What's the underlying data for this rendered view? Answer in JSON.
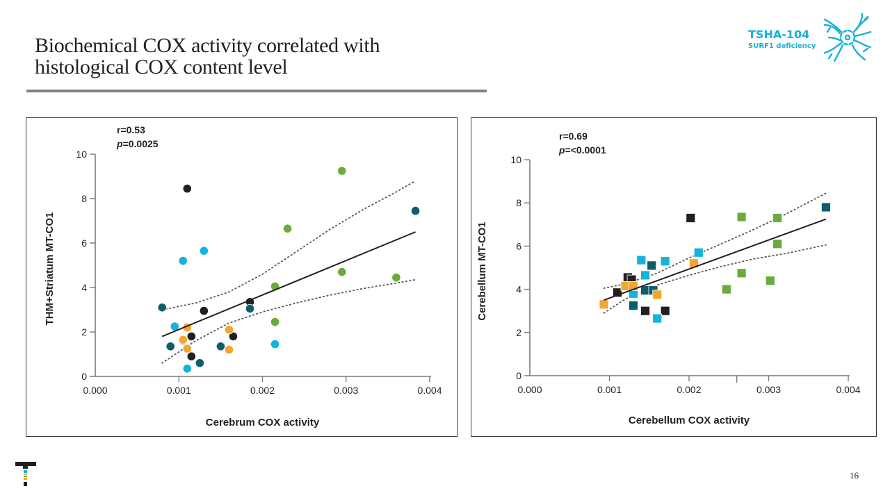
{
  "slide": {
    "title_line1": "Biochemical COX activity correlated with",
    "title_line2": "histological COX content level",
    "brand_name": "TSHA-104",
    "brand_subtitle": "SURF1 deficiency",
    "brand_icon": "neuron-icon",
    "logo_icon": "company-t-logo",
    "page_number": "16",
    "colors": {
      "brand": "#1ab0d8",
      "black": "#231f20",
      "teal": "#0b5f6b",
      "cyan": "#14b3da",
      "orange": "#f5a532",
      "green": "#6aac3c"
    }
  },
  "chart_data": [
    {
      "type": "scatter",
      "marker": "circle",
      "title": "",
      "annotation_r": "r=0.53",
      "annotation_p_label": "p",
      "annotation_p_value": "=0.0025",
      "xlabel": "Cerebrum COX activity",
      "ylabel": "THM+Striatum MT-CO1",
      "xlim": [
        0,
        0.004
      ],
      "ylim": [
        0,
        10
      ],
      "xticks": [
        "0.000",
        "0.001",
        "0.002",
        "0.003",
        "0.004"
      ],
      "xtick_values": [
        0,
        0.001,
        0.002,
        0.003,
        0.004
      ],
      "yticks": [
        "0",
        "2",
        "4",
        "6",
        "8",
        "10"
      ],
      "ytick_values": [
        0,
        2,
        4,
        6,
        8,
        10
      ],
      "grid": false,
      "regression": {
        "x": [
          0.0008,
          0.00383
        ],
        "y": [
          1.8,
          6.5
        ]
      },
      "ci_upper": {
        "x": [
          0.0008,
          0.0012,
          0.0016,
          0.002,
          0.0024,
          0.0028,
          0.0032,
          0.0036,
          0.00383
        ],
        "y": [
          3.0,
          3.3,
          3.8,
          4.6,
          5.6,
          6.6,
          7.5,
          8.3,
          8.8
        ]
      },
      "ci_lower": {
        "x": [
          0.0008,
          0.0012,
          0.0016,
          0.002,
          0.0024,
          0.0028,
          0.0032,
          0.0036,
          0.00383
        ],
        "y": [
          0.6,
          1.6,
          2.4,
          2.9,
          3.3,
          3.65,
          3.95,
          4.2,
          4.35
        ]
      },
      "series": [
        {
          "name": "black",
          "color": "#231f20",
          "points": [
            [
              0.0011,
              8.45
            ],
            [
              0.0013,
              2.95
            ],
            [
              0.00115,
              1.8
            ],
            [
              0.00115,
              0.9
            ],
            [
              0.00185,
              3.35
            ],
            [
              0.00165,
              1.8
            ]
          ]
        },
        {
          "name": "teal",
          "color": "#0b5f6b",
          "points": [
            [
              0.0008,
              3.1
            ],
            [
              0.0009,
              1.35
            ],
            [
              0.00125,
              0.6
            ],
            [
              0.0015,
              1.35
            ],
            [
              0.00185,
              3.05
            ],
            [
              0.00383,
              7.45
            ]
          ]
        },
        {
          "name": "cyan",
          "color": "#14b3da",
          "points": [
            [
              0.00105,
              5.2
            ],
            [
              0.0013,
              5.65
            ],
            [
              0.00095,
              2.25
            ],
            [
              0.00105,
              1.6
            ],
            [
              0.0011,
              0.35
            ],
            [
              0.00215,
              1.45
            ]
          ]
        },
        {
          "name": "orange",
          "color": "#f5a532",
          "points": [
            [
              0.0011,
              2.2
            ],
            [
              0.00105,
              1.65
            ],
            [
              0.0011,
              1.25
            ],
            [
              0.0016,
              2.1
            ],
            [
              0.0016,
              1.2
            ]
          ]
        },
        {
          "name": "green",
          "color": "#6aac3c",
          "points": [
            [
              0.00295,
              9.25
            ],
            [
              0.0023,
              6.65
            ],
            [
              0.00215,
              4.05
            ],
            [
              0.00215,
              2.45
            ],
            [
              0.00295,
              4.7
            ],
            [
              0.0036,
              4.45
            ]
          ]
        }
      ]
    },
    {
      "type": "scatter",
      "marker": "square",
      "title": "",
      "annotation_r": "r=0.69",
      "annotation_p_label": "p",
      "annotation_p_value": "=<0.0001",
      "xlabel": "Cerebellum COX activity",
      "ylabel": "Cerebellum MT-CO1",
      "xlim": [
        0,
        0.004
      ],
      "ylim": [
        0,
        10
      ],
      "xticks": [
        "0.000",
        "0.001",
        "0.002",
        "0.003",
        "0.004"
      ],
      "xtick_values": [
        0,
        0.001,
        0.002,
        0.003,
        0.004
      ],
      "extra_xtick": 0.0026,
      "yticks": [
        "0",
        "2",
        "4",
        "6",
        "8",
        "10"
      ],
      "ytick_values": [
        0,
        2,
        4,
        6,
        8,
        10
      ],
      "grid": false,
      "regression": {
        "x": [
          0.00093,
          0.00372
        ],
        "y": [
          3.5,
          7.25
        ]
      },
      "ci_upper": {
        "x": [
          0.00093,
          0.0012,
          0.0016,
          0.002,
          0.0024,
          0.0028,
          0.0032,
          0.00372
        ],
        "y": [
          4.05,
          4.25,
          4.75,
          5.45,
          6.1,
          6.75,
          7.45,
          8.45
        ]
      },
      "ci_lower": {
        "x": [
          0.00093,
          0.0012,
          0.0016,
          0.002,
          0.0024,
          0.0028,
          0.0032,
          0.00372
        ],
        "y": [
          2.9,
          3.55,
          4.2,
          4.65,
          5.05,
          5.4,
          5.65,
          6.05
        ]
      },
      "series": [
        {
          "name": "black",
          "color": "#231f20",
          "points": [
            [
              0.0011,
              3.85
            ],
            [
              0.00123,
              4.55
            ],
            [
              0.00128,
              4.45
            ],
            [
              0.00145,
              3.0
            ],
            [
              0.0017,
              3.0
            ],
            [
              0.00202,
              7.3
            ]
          ]
        },
        {
          "name": "teal",
          "color": "#0b5f6b",
          "points": [
            [
              0.00153,
              5.1
            ],
            [
              0.0013,
              3.25
            ],
            [
              0.00145,
              3.95
            ],
            [
              0.00155,
              3.95
            ],
            [
              0.00372,
              7.8
            ]
          ]
        },
        {
          "name": "cyan",
          "color": "#14b3da",
          "points": [
            [
              0.0014,
              5.35
            ],
            [
              0.0017,
              5.3
            ],
            [
              0.00145,
              4.65
            ],
            [
              0.0013,
              3.8
            ],
            [
              0.0016,
              2.65
            ],
            [
              0.00212,
              5.7
            ]
          ]
        },
        {
          "name": "orange",
          "color": "#f5a532",
          "points": [
            [
              0.00093,
              3.3
            ],
            [
              0.0012,
              4.15
            ],
            [
              0.0013,
              4.15
            ],
            [
              0.0016,
              3.75
            ],
            [
              0.00206,
              5.2
            ]
          ]
        },
        {
          "name": "green",
          "color": "#6aac3c",
          "points": [
            [
              0.00266,
              7.35
            ],
            [
              0.00311,
              7.3
            ],
            [
              0.00311,
              6.1
            ],
            [
              0.00247,
              4.0
            ],
            [
              0.00266,
              4.75
            ],
            [
              0.00302,
              4.4
            ]
          ]
        }
      ]
    }
  ]
}
